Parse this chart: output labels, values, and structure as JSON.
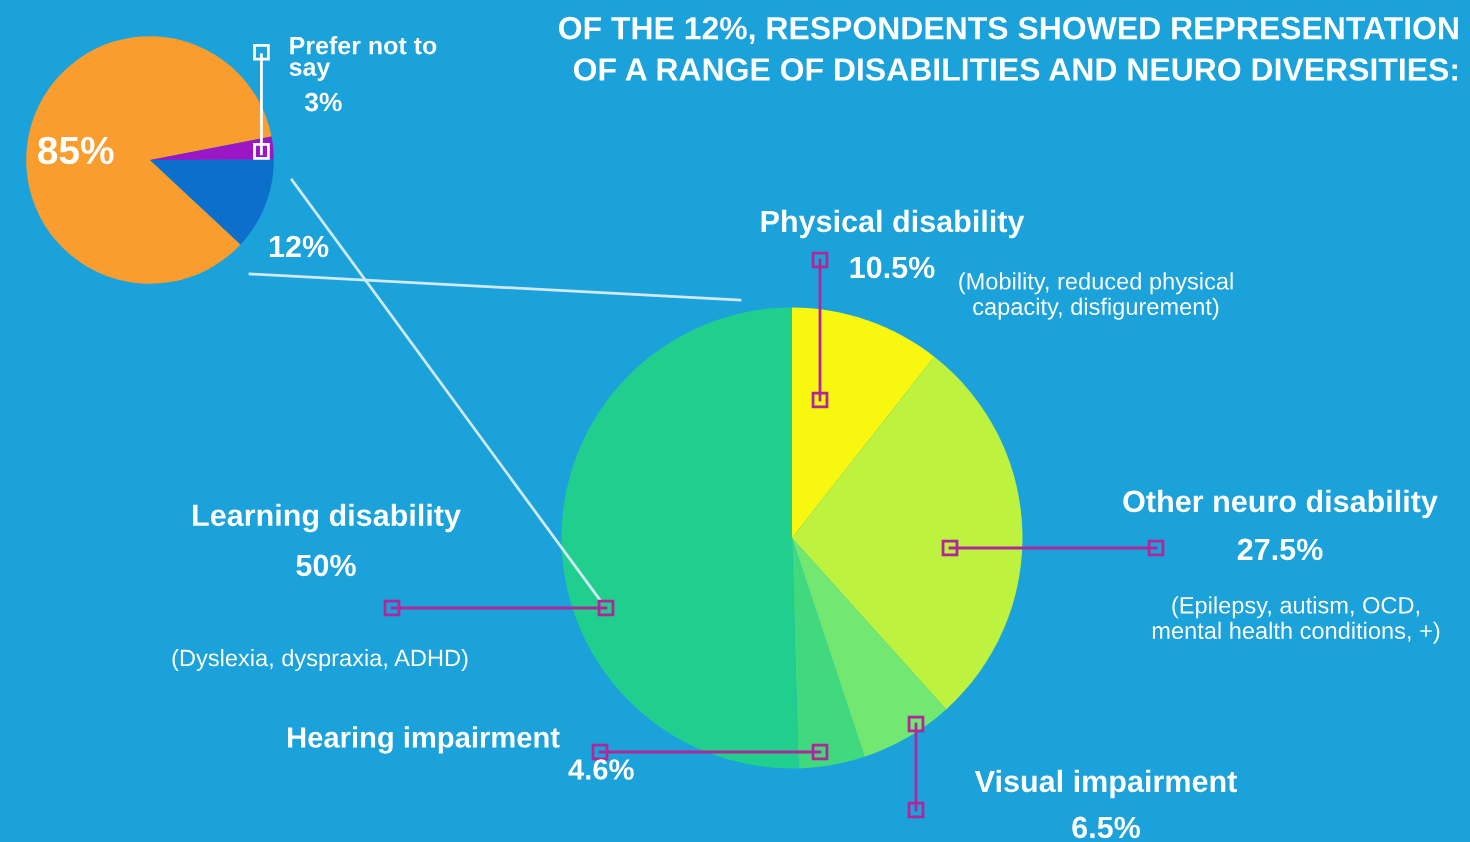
{
  "chart_data": [
    {
      "type": "pie",
      "categories": [
        null,
        "Prefer not to say",
        null
      ],
      "values": [
        85,
        3,
        12
      ],
      "colors": [
        "#f99d2e",
        "#9b16c4",
        "#0d6fcc"
      ],
      "value_labels": [
        "85%",
        "3%",
        "12%"
      ],
      "legend": false
    },
    {
      "type": "pie",
      "title": "OF THE 12%, RESPONDENTS SHOWED REPRESENTATION\nOF A RANGE OF DISABILITIES AND NEURO DIVERSITIES:",
      "categories": [
        "Physical disability",
        "Other neuro disability",
        "Visual impairment",
        "Hearing impairment",
        "Learning disability"
      ],
      "values": [
        10.5,
        27.5,
        6.5,
        4.6,
        50
      ],
      "colors": [
        "#f7f70f",
        "#bdf23f",
        "#72e872",
        "#40d97e",
        "#20cf8e"
      ],
      "value_labels": [
        "10.5%",
        "27.5%",
        "6.5%",
        "4.6%",
        "50%"
      ],
      "annotations": [
        "(Mobility, reduced physical capacity, disfigurement)",
        "(Epilepsy, autism, OCD, mental health conditions, +)",
        "(Dyslexia, dyspraxia, ADHD)"
      ],
      "legend": false
    }
  ]
}
